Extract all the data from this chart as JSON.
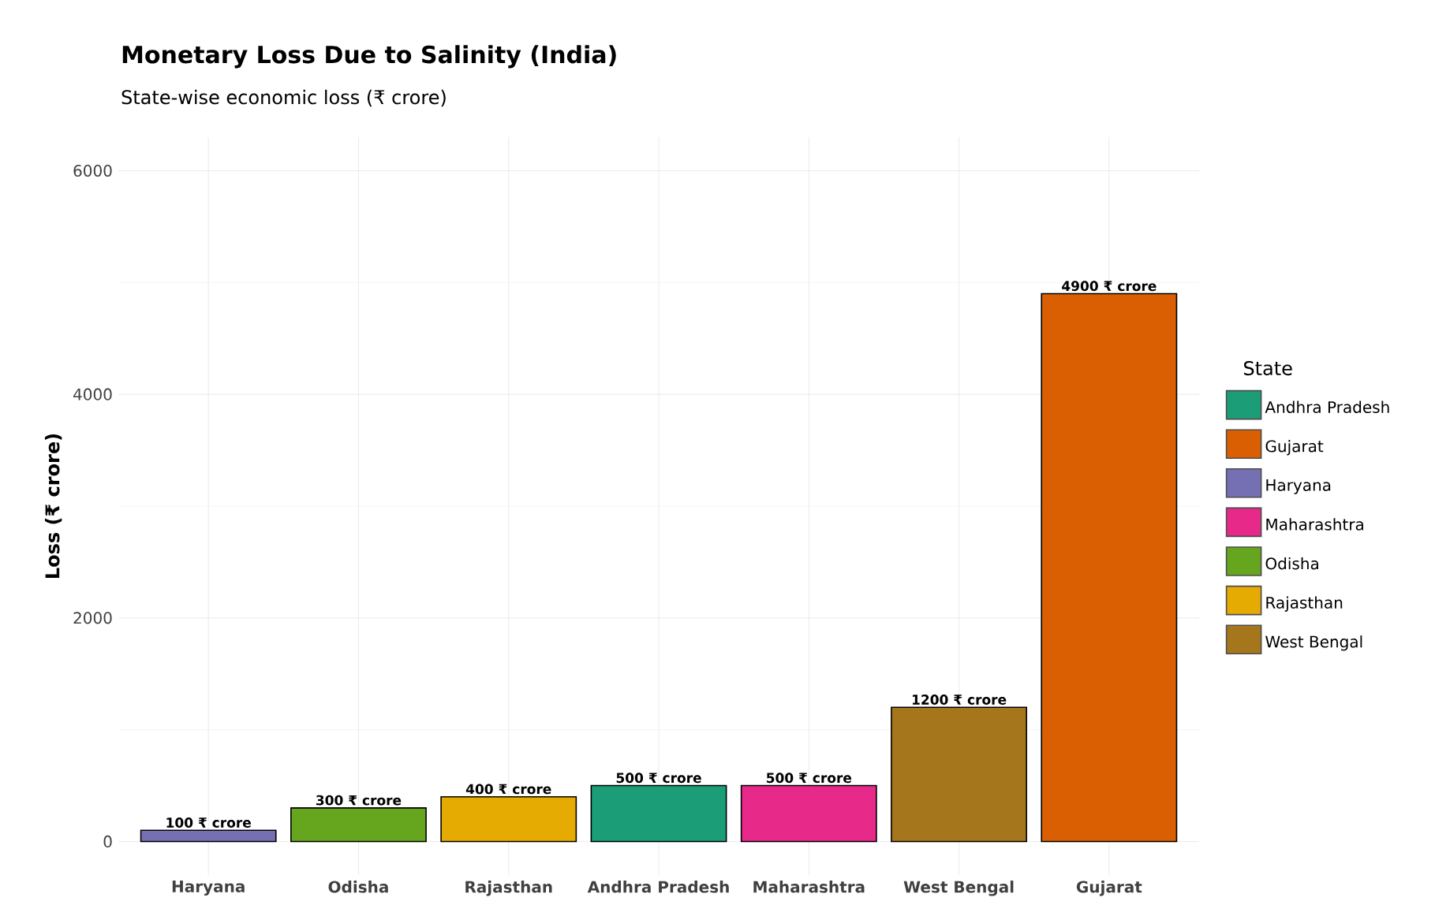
{
  "chart_data": {
    "type": "bar",
    "title": "Monetary Loss Due to Salinity (India)",
    "subtitle": "State-wise economic loss (₹ crore)",
    "ylabel": "Loss (₹ crore)",
    "legend_title": "State",
    "categories": [
      "Haryana",
      "Odisha",
      "Rajasthan",
      "Andhra Pradesh",
      "Maharashtra",
      "West Bengal",
      "Gujarat"
    ],
    "series": [
      {
        "name": "Andhra Pradesh",
        "color": "#1b9e77",
        "values": [
          null,
          null,
          null,
          500,
          null,
          null,
          null
        ],
        "value_labels": [
          null,
          null,
          null,
          "500 ₹ crore",
          null,
          null,
          null
        ]
      },
      {
        "name": "Gujarat",
        "color": "#d95f02",
        "values": [
          null,
          null,
          null,
          null,
          null,
          null,
          4900
        ],
        "value_labels": [
          null,
          null,
          null,
          null,
          null,
          null,
          "4900 ₹ crore"
        ]
      },
      {
        "name": "Haryana",
        "color": "#7570b3",
        "values": [
          100,
          null,
          null,
          null,
          null,
          null,
          null
        ],
        "value_labels": [
          "100 ₹ crore",
          null,
          null,
          null,
          null,
          null,
          null
        ]
      },
      {
        "name": "Maharashtra",
        "color": "#e7298a",
        "values": [
          null,
          null,
          null,
          null,
          500,
          null,
          null
        ],
        "value_labels": [
          null,
          null,
          null,
          null,
          "500 ₹ crore",
          null,
          null
        ]
      },
      {
        "name": "Odisha",
        "color": "#66a61e",
        "values": [
          null,
          300,
          null,
          null,
          null,
          null,
          null
        ],
        "value_labels": [
          null,
          "300 ₹ crore",
          null,
          null,
          null,
          null,
          null
        ]
      },
      {
        "name": "Rajasthan",
        "color": "#e6ab02",
        "values": [
          null,
          null,
          400,
          null,
          null,
          null,
          null
        ],
        "value_labels": [
          null,
          null,
          "400 ₹ crore",
          null,
          null,
          null,
          null
        ]
      },
      {
        "name": "West Bengal",
        "color": "#a6761d",
        "values": [
          null,
          null,
          null,
          null,
          null,
          1200,
          null
        ],
        "value_labels": [
          null,
          null,
          null,
          null,
          null,
          "1200 ₹ crore",
          null
        ]
      }
    ],
    "ylim": [
      -300,
      6300
    ],
    "yticks": [
      0,
      2000,
      4000,
      6000
    ],
    "grid": true,
    "legend": "right"
  }
}
